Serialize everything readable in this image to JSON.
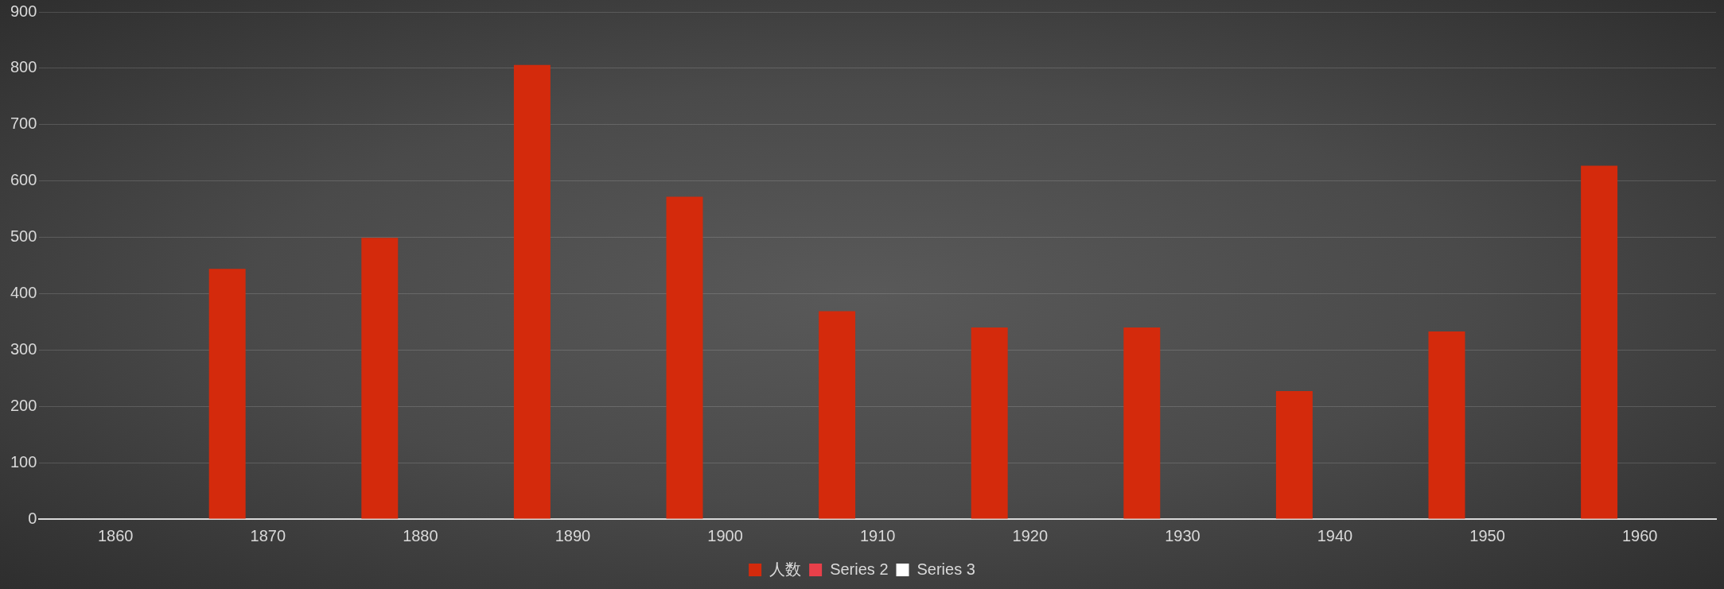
{
  "chart_data": {
    "type": "bar",
    "categories": [
      "1860",
      "1870",
      "1880",
      "1890",
      "1900",
      "1910",
      "1920",
      "1930",
      "1940",
      "1950",
      "1960"
    ],
    "series": [
      {
        "name": "人数",
        "color": "#d42a0c",
        "values": [
          0,
          444,
          499,
          806,
          572,
          369,
          340,
          340,
          227,
          333,
          627
        ]
      },
      {
        "name": "Series 2",
        "color": "#e8404a",
        "values": [
          null,
          null,
          null,
          null,
          null,
          null,
          null,
          null,
          null,
          null,
          null
        ]
      },
      {
        "name": "Series 3",
        "color": "#ffffff",
        "values": [
          null,
          null,
          null,
          null,
          null,
          null,
          null,
          null,
          null,
          null,
          null
        ]
      }
    ],
    "ylim": [
      0,
      900
    ],
    "yticks": [
      0,
      100,
      200,
      300,
      400,
      500,
      600,
      700,
      800,
      900
    ],
    "grid": "y",
    "legend": "bottom"
  }
}
